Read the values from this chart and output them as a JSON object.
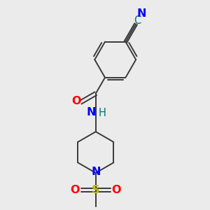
{
  "bg_color": "#ebebeb",
  "bond_color": "#3a3a3a",
  "atom_colors": {
    "N": "#0000ff",
    "O": "#ff0000",
    "S": "#b8b800",
    "C_cyano": "#007070",
    "H": "#007070"
  },
  "bond_lw": 1.4,
  "font_size": 10.5
}
